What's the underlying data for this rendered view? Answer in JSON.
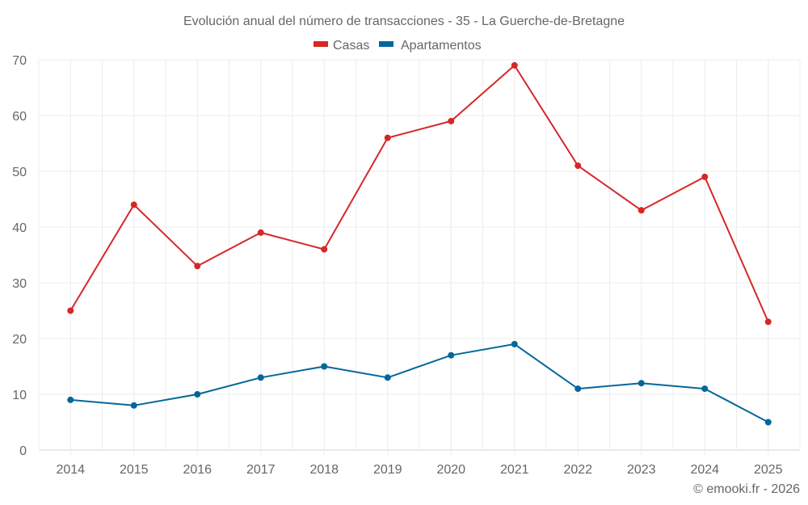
{
  "chart_data": {
    "type": "line",
    "title": "Evolución anual del número de transacciones - 35 - La Guerche-de-Bretagne",
    "xlabel": "",
    "ylabel": "",
    "x": [
      "2014",
      "2015",
      "2016",
      "2017",
      "2018",
      "2019",
      "2020",
      "2021",
      "2022",
      "2023",
      "2024",
      "2025"
    ],
    "series": [
      {
        "name": "Casas",
        "color": "#d62728",
        "values": [
          25,
          44,
          33,
          39,
          36,
          56,
          59,
          69,
          51,
          43,
          49,
          23
        ]
      },
      {
        "name": "Apartamentos",
        "color": "#04679b",
        "values": [
          9,
          8,
          10,
          13,
          15,
          13,
          17,
          19,
          11,
          12,
          11,
          5
        ]
      }
    ],
    "ylim": [
      0,
      70
    ],
    "yticks": [
      0,
      10,
      20,
      30,
      40,
      50,
      60,
      70
    ],
    "grid": true,
    "legend_position": "top-center"
  },
  "credit": "© emooki.fr - 2026"
}
